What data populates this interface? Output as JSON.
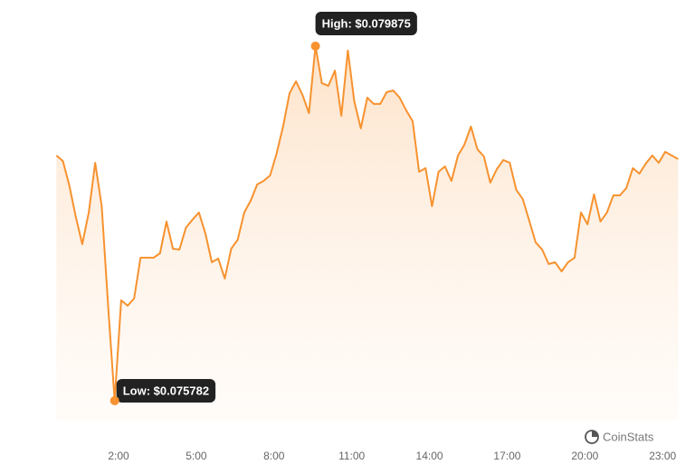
{
  "chart_data": {
    "type": "area",
    "brand": "CoinStats",
    "color": "#f7922f",
    "x": [
      -0.4,
      -0.15,
      0.1,
      0.35,
      0.6,
      0.85,
      1.1,
      1.35,
      1.6,
      1.85,
      2.1,
      2.35,
      2.6,
      2.85,
      3.1,
      3.35,
      3.6,
      3.85,
      4.1,
      4.35,
      4.6,
      4.85,
      5.1,
      5.35,
      5.6,
      5.85,
      6.1,
      6.35,
      6.6,
      6.85,
      7.1,
      7.35,
      7.6,
      7.85,
      8.1,
      8.35,
      8.6,
      8.85,
      9.1,
      9.35,
      9.6,
      9.85,
      10.1,
      10.35,
      10.6,
      10.85,
      11.1,
      11.35,
      11.6,
      11.85,
      12.1,
      12.35,
      12.6,
      12.85,
      13.1,
      13.35,
      13.6,
      13.85,
      14.1,
      14.35,
      14.6,
      14.85,
      15.1,
      15.35,
      15.6,
      15.85,
      16.1,
      16.35,
      16.6,
      16.85,
      17.1,
      17.35,
      17.6,
      17.85,
      18.1,
      18.35,
      18.6,
      18.85,
      19.1,
      19.35,
      19.6,
      19.85,
      20.1,
      20.35,
      20.6,
      20.85,
      21.1,
      21.35,
      21.6,
      21.85,
      22.1,
      22.35,
      22.6,
      22.85,
      23.1,
      23.35,
      23.6
    ],
    "values": [
      0.078612,
      0.078549,
      0.078267,
      0.077902,
      0.077589,
      0.077954,
      0.078528,
      0.078027,
      0.076858,
      0.075782,
      0.076941,
      0.076879,
      0.076962,
      0.077432,
      0.077432,
      0.077432,
      0.077484,
      0.07785,
      0.077536,
      0.077526,
      0.077777,
      0.077871,
      0.077954,
      0.077714,
      0.07738,
      0.077422,
      0.077192,
      0.077536,
      0.077641,
      0.077954,
      0.07809,
      0.078278,
      0.078319,
      0.078382,
      0.078633,
      0.078946,
      0.079332,
      0.079468,
      0.079311,
      0.079102,
      0.079875,
      0.079447,
      0.079416,
      0.079593,
      0.079071,
      0.079823,
      0.079238,
      0.078925,
      0.07928,
      0.079207,
      0.079207,
      0.079343,
      0.079363,
      0.07928,
      0.079134,
      0.079008,
      0.078424,
      0.078466,
      0.078027,
      0.078424,
      0.078486,
      0.078319,
      0.078612,
      0.078737,
      0.078946,
      0.078685,
      0.078601,
      0.078299,
      0.078455,
      0.07856,
      0.078528,
      0.078215,
      0.078111,
      0.07786,
      0.07761,
      0.077526,
      0.077359,
      0.07738,
      0.077275,
      0.07738,
      0.077432,
      0.077954,
      0.077818,
      0.078163,
      0.07785,
      0.077954,
      0.078152,
      0.078152,
      0.078236,
      0.078466,
      0.078403,
      0.078518,
      0.078612,
      0.078528,
      0.078654,
      0.078612,
      0.07857
    ],
    "xlim": [
      -0.4,
      23.6
    ],
    "ylim": [
      0.075552,
      0.080407
    ],
    "xticks": [
      {
        "value": 2,
        "label": "2:00"
      },
      {
        "value": 5,
        "label": "5:00"
      },
      {
        "value": 8,
        "label": "8:00"
      },
      {
        "value": 11,
        "label": "11:00"
      },
      {
        "value": 14,
        "label": "14:00"
      },
      {
        "value": 17,
        "label": "17:00"
      },
      {
        "value": 20,
        "label": "20:00"
      },
      {
        "value": 23,
        "label": "23:00"
      }
    ],
    "annotations": [
      {
        "text": "High: $0.079875",
        "x": 9.6,
        "value": 0.079875
      },
      {
        "text": "Low: $0.075782",
        "x": 1.85,
        "value": 0.075782
      }
    ]
  }
}
